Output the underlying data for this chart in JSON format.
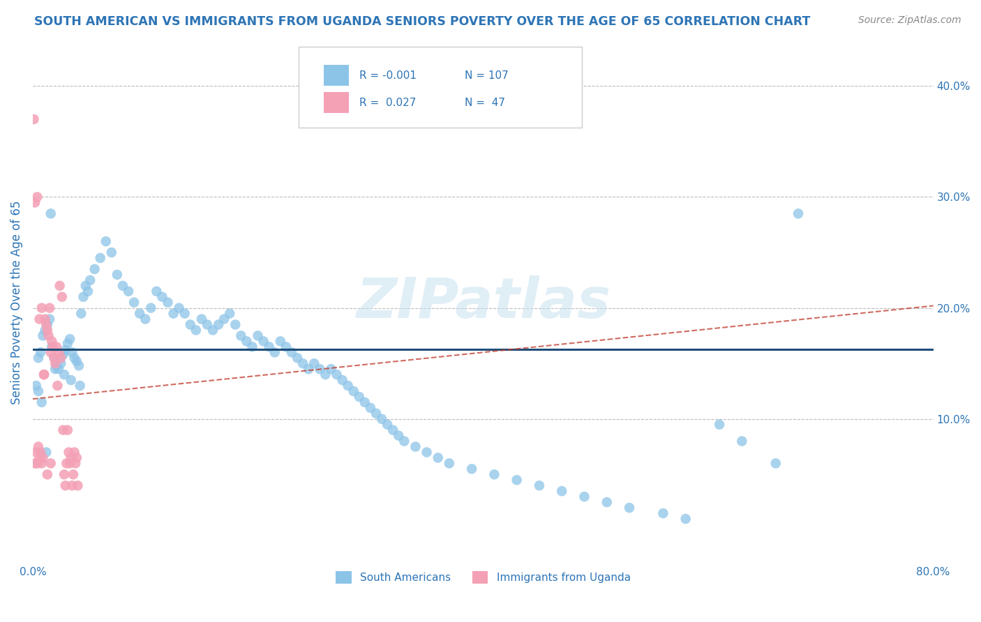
{
  "title": "SOUTH AMERICAN VS IMMIGRANTS FROM UGANDA SENIORS POVERTY OVER THE AGE OF 65 CORRELATION CHART",
  "source": "Source: ZipAtlas.com",
  "ylabel": "Seniors Poverty Over the Age of 65",
  "xlim": [
    0.0,
    0.8
  ],
  "ylim": [
    -0.03,
    0.44
  ],
  "xticks": [
    0.0,
    0.1,
    0.2,
    0.3,
    0.4,
    0.5,
    0.6,
    0.7,
    0.8
  ],
  "yticks_right": [
    0.1,
    0.2,
    0.3,
    0.4
  ],
  "ytick_right_labels": [
    "10.0%",
    "20.0%",
    "30.0%",
    "40.0%"
  ],
  "blue_R": "-0.001",
  "blue_N": "107",
  "pink_R": "0.027",
  "pink_N": "47",
  "blue_color": "#8cc4e8",
  "pink_color": "#f4a0b5",
  "blue_line_color": "#1f4e79",
  "pink_line_color": "#c0392b",
  "title_color": "#2e75b6",
  "axis_color": "#2e75b6",
  "watermark": "ZIPatlas",
  "legend_blue_label": "South Americans",
  "legend_pink_label": "Immigrants from Uganda",
  "blue_scatter_x": [
    0.003,
    0.005,
    0.007,
    0.009,
    0.011,
    0.013,
    0.015,
    0.017,
    0.019,
    0.021,
    0.023,
    0.025,
    0.027,
    0.029,
    0.031,
    0.033,
    0.035,
    0.037,
    0.039,
    0.041,
    0.043,
    0.045,
    0.047,
    0.049,
    0.051,
    0.055,
    0.06,
    0.065,
    0.07,
    0.075,
    0.08,
    0.085,
    0.09,
    0.095,
    0.1,
    0.105,
    0.11,
    0.115,
    0.12,
    0.125,
    0.13,
    0.135,
    0.14,
    0.145,
    0.15,
    0.155,
    0.16,
    0.165,
    0.17,
    0.175,
    0.18,
    0.185,
    0.19,
    0.195,
    0.2,
    0.205,
    0.21,
    0.215,
    0.22,
    0.225,
    0.23,
    0.235,
    0.24,
    0.245,
    0.25,
    0.255,
    0.26,
    0.265,
    0.27,
    0.275,
    0.28,
    0.285,
    0.29,
    0.295,
    0.3,
    0.305,
    0.31,
    0.315,
    0.32,
    0.325,
    0.33,
    0.34,
    0.35,
    0.36,
    0.37,
    0.39,
    0.41,
    0.43,
    0.45,
    0.47,
    0.49,
    0.51,
    0.53,
    0.56,
    0.58,
    0.61,
    0.63,
    0.66,
    0.68,
    0.005,
    0.008,
    0.012,
    0.016,
    0.02,
    0.028,
    0.034,
    0.042
  ],
  "blue_scatter_y": [
    0.13,
    0.155,
    0.16,
    0.175,
    0.18,
    0.185,
    0.19,
    0.165,
    0.155,
    0.148,
    0.145,
    0.15,
    0.158,
    0.162,
    0.168,
    0.172,
    0.16,
    0.155,
    0.152,
    0.148,
    0.195,
    0.21,
    0.22,
    0.215,
    0.225,
    0.235,
    0.245,
    0.26,
    0.25,
    0.23,
    0.22,
    0.215,
    0.205,
    0.195,
    0.19,
    0.2,
    0.215,
    0.21,
    0.205,
    0.195,
    0.2,
    0.195,
    0.185,
    0.18,
    0.19,
    0.185,
    0.18,
    0.185,
    0.19,
    0.195,
    0.185,
    0.175,
    0.17,
    0.165,
    0.175,
    0.17,
    0.165,
    0.16,
    0.17,
    0.165,
    0.16,
    0.155,
    0.15,
    0.145,
    0.15,
    0.145,
    0.14,
    0.145,
    0.14,
    0.135,
    0.13,
    0.125,
    0.12,
    0.115,
    0.11,
    0.105,
    0.1,
    0.095,
    0.09,
    0.085,
    0.08,
    0.075,
    0.07,
    0.065,
    0.06,
    0.055,
    0.05,
    0.045,
    0.04,
    0.035,
    0.03,
    0.025,
    0.02,
    0.015,
    0.01,
    0.095,
    0.08,
    0.06,
    0.285,
    0.125,
    0.115,
    0.07,
    0.285,
    0.145,
    0.14,
    0.135,
    0.13
  ],
  "pink_scatter_x": [
    0.001,
    0.002,
    0.003,
    0.004,
    0.005,
    0.006,
    0.007,
    0.008,
    0.009,
    0.01,
    0.011,
    0.012,
    0.013,
    0.014,
    0.015,
    0.016,
    0.017,
    0.018,
    0.019,
    0.02,
    0.021,
    0.022,
    0.023,
    0.024,
    0.025,
    0.026,
    0.027,
    0.028,
    0.029,
    0.03,
    0.031,
    0.032,
    0.033,
    0.034,
    0.035,
    0.036,
    0.037,
    0.038,
    0.039,
    0.04,
    0.002,
    0.004,
    0.006,
    0.008,
    0.01,
    0.013,
    0.016
  ],
  "pink_scatter_y": [
    0.37,
    0.06,
    0.07,
    0.06,
    0.075,
    0.065,
    0.07,
    0.06,
    0.065,
    0.14,
    0.19,
    0.185,
    0.18,
    0.175,
    0.2,
    0.16,
    0.17,
    0.165,
    0.155,
    0.15,
    0.165,
    0.13,
    0.16,
    0.22,
    0.155,
    0.21,
    0.09,
    0.05,
    0.04,
    0.06,
    0.09,
    0.07,
    0.06,
    0.065,
    0.04,
    0.05,
    0.07,
    0.06,
    0.065,
    0.04,
    0.295,
    0.3,
    0.19,
    0.2,
    0.14,
    0.05,
    0.06
  ],
  "blue_hline_y": 0.163,
  "pink_trend_x0": 0.0,
  "pink_trend_y0": 0.118,
  "pink_trend_x1": 0.8,
  "pink_trend_y1": 0.202
}
